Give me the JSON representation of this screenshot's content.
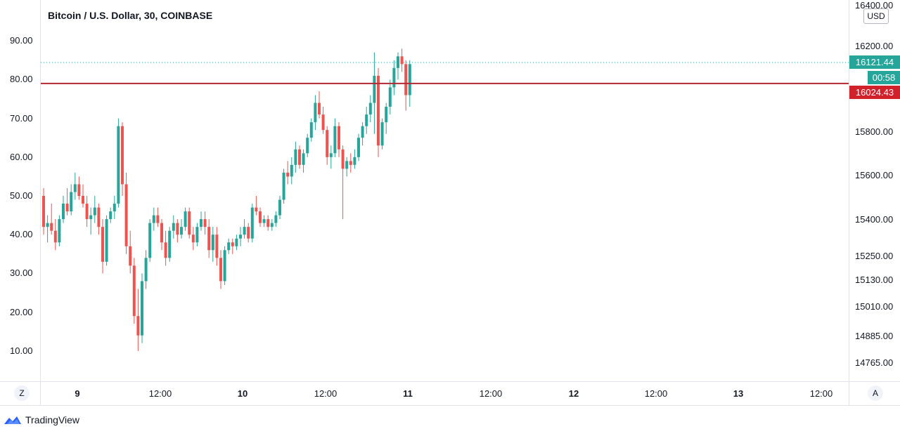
{
  "title": "Bitcoin / U.S. Dollar, 30, COINBASE",
  "currency_label": "USD",
  "brand": {
    "name": "TradingView",
    "icon": "tradingview-cloud-icon"
  },
  "left_axis_labels": [
    "90.00",
    "80.00",
    "70.00",
    "60.00",
    "50.00",
    "40.00",
    "30.00",
    "20.00",
    "10.00"
  ],
  "right_axis_labels": [
    "16400.00",
    "16200.00",
    "15800.00",
    "15600.00",
    "15400.00",
    "15250.00",
    "15130.00",
    "15010.00",
    "14885.00",
    "14765.00"
  ],
  "x_axis_labels": [
    "9",
    "12:00",
    "10",
    "12:00",
    "11",
    "12:00",
    "12",
    "12:00",
    "13",
    "12:00"
  ],
  "tags": {
    "last_price": "16121.44",
    "countdown": "00:58",
    "line_price": "16024.43"
  },
  "buttons": {
    "zoom": "Z",
    "auto_scale": "A"
  },
  "colors": {
    "up": "#26a69a",
    "down": "#ef5350",
    "level_line": "#b22833",
    "last_price_tag": "#26a69a",
    "level_tag": "#d1212b"
  },
  "chart_data": {
    "type": "candlestick",
    "title": "Bitcoin / U.S. Dollar, 30, COINBASE",
    "interval": "30",
    "exchange": "COINBASE",
    "scale": "percent-mapped",
    "left_ylim": [
      0,
      100
    ],
    "x_ticks": [
      "9",
      "12:00",
      "10",
      "12:00",
      "11",
      "12:00",
      "12",
      "12:00",
      "13",
      "12:00"
    ],
    "horizontal_line": 79,
    "last_price": 16121.44,
    "line_price": 16024.43,
    "candles": [
      {
        "o": 50,
        "h": 52,
        "l": 40,
        "c": 42
      },
      {
        "o": 42,
        "h": 45,
        "l": 38,
        "c": 43
      },
      {
        "o": 43,
        "h": 48,
        "l": 40,
        "c": 41
      },
      {
        "o": 41,
        "h": 44,
        "l": 36,
        "c": 38
      },
      {
        "o": 38,
        "h": 45,
        "l": 37,
        "c": 44
      },
      {
        "o": 44,
        "h": 50,
        "l": 43,
        "c": 48
      },
      {
        "o": 48,
        "h": 52,
        "l": 45,
        "c": 46
      },
      {
        "o": 46,
        "h": 53,
        "l": 45,
        "c": 51
      },
      {
        "o": 51,
        "h": 56,
        "l": 49,
        "c": 53
      },
      {
        "o": 53,
        "h": 55,
        "l": 49,
        "c": 50
      },
      {
        "o": 50,
        "h": 53,
        "l": 47,
        "c": 48
      },
      {
        "o": 48,
        "h": 50,
        "l": 42,
        "c": 44
      },
      {
        "o": 44,
        "h": 47,
        "l": 40,
        "c": 45
      },
      {
        "o": 45,
        "h": 50,
        "l": 43,
        "c": 47
      },
      {
        "o": 47,
        "h": 48,
        "l": 40,
        "c": 42
      },
      {
        "o": 42,
        "h": 44,
        "l": 30,
        "c": 33
      },
      {
        "o": 33,
        "h": 45,
        "l": 32,
        "c": 44
      },
      {
        "o": 44,
        "h": 47,
        "l": 43,
        "c": 46
      },
      {
        "o": 46,
        "h": 50,
        "l": 44,
        "c": 48
      },
      {
        "o": 48,
        "h": 70,
        "l": 47,
        "c": 68
      },
      {
        "o": 68,
        "h": 69,
        "l": 50,
        "c": 53
      },
      {
        "o": 53,
        "h": 56,
        "l": 35,
        "c": 37
      },
      {
        "o": 37,
        "h": 41,
        "l": 30,
        "c": 32
      },
      {
        "o": 32,
        "h": 34,
        "l": 17,
        "c": 19
      },
      {
        "o": 19,
        "h": 26,
        "l": 10,
        "c": 14
      },
      {
        "o": 14,
        "h": 30,
        "l": 12,
        "c": 28
      },
      {
        "o": 28,
        "h": 36,
        "l": 26,
        "c": 34
      },
      {
        "o": 34,
        "h": 44,
        "l": 33,
        "c": 43
      },
      {
        "o": 43,
        "h": 47,
        "l": 41,
        "c": 45
      },
      {
        "o": 45,
        "h": 47,
        "l": 42,
        "c": 43
      },
      {
        "o": 43,
        "h": 44,
        "l": 36,
        "c": 38
      },
      {
        "o": 38,
        "h": 41,
        "l": 32,
        "c": 34
      },
      {
        "o": 34,
        "h": 42,
        "l": 33,
        "c": 41
      },
      {
        "o": 41,
        "h": 45,
        "l": 39,
        "c": 43
      },
      {
        "o": 43,
        "h": 44,
        "l": 38,
        "c": 40
      },
      {
        "o": 40,
        "h": 44,
        "l": 39,
        "c": 42
      },
      {
        "o": 42,
        "h": 47,
        "l": 41,
        "c": 46
      },
      {
        "o": 46,
        "h": 47,
        "l": 39,
        "c": 40
      },
      {
        "o": 40,
        "h": 42,
        "l": 36,
        "c": 38
      },
      {
        "o": 38,
        "h": 43,
        "l": 37,
        "c": 42
      },
      {
        "o": 42,
        "h": 46,
        "l": 41,
        "c": 44
      },
      {
        "o": 44,
        "h": 46,
        "l": 40,
        "c": 42
      },
      {
        "o": 42,
        "h": 44,
        "l": 34,
        "c": 36
      },
      {
        "o": 36,
        "h": 42,
        "l": 33,
        "c": 40
      },
      {
        "o": 40,
        "h": 42,
        "l": 32,
        "c": 34
      },
      {
        "o": 34,
        "h": 36,
        "l": 26,
        "c": 28
      },
      {
        "o": 28,
        "h": 37,
        "l": 27,
        "c": 36
      },
      {
        "o": 36,
        "h": 39,
        "l": 35,
        "c": 38
      },
      {
        "o": 38,
        "h": 39,
        "l": 35,
        "c": 37
      },
      {
        "o": 37,
        "h": 40,
        "l": 36,
        "c": 39
      },
      {
        "o": 39,
        "h": 42,
        "l": 37,
        "c": 40
      },
      {
        "o": 40,
        "h": 44,
        "l": 39,
        "c": 42
      },
      {
        "o": 42,
        "h": 43,
        "l": 38,
        "c": 39
      },
      {
        "o": 39,
        "h": 48,
        "l": 38,
        "c": 47
      },
      {
        "o": 47,
        "h": 50,
        "l": 45,
        "c": 46
      },
      {
        "o": 46,
        "h": 47,
        "l": 42,
        "c": 43
      },
      {
        "o": 43,
        "h": 45,
        "l": 42,
        "c": 44
      },
      {
        "o": 44,
        "h": 45,
        "l": 41,
        "c": 42
      },
      {
        "o": 42,
        "h": 44,
        "l": 41,
        "c": 43
      },
      {
        "o": 43,
        "h": 46,
        "l": 42,
        "c": 45
      },
      {
        "o": 45,
        "h": 50,
        "l": 44,
        "c": 49
      },
      {
        "o": 49,
        "h": 57,
        "l": 48,
        "c": 56
      },
      {
        "o": 56,
        "h": 59,
        "l": 53,
        "c": 55
      },
      {
        "o": 55,
        "h": 60,
        "l": 53,
        "c": 58
      },
      {
        "o": 58,
        "h": 64,
        "l": 56,
        "c": 62
      },
      {
        "o": 62,
        "h": 63,
        "l": 57,
        "c": 58
      },
      {
        "o": 58,
        "h": 62,
        "l": 56,
        "c": 61
      },
      {
        "o": 61,
        "h": 66,
        "l": 60,
        "c": 65
      },
      {
        "o": 65,
        "h": 70,
        "l": 64,
        "c": 69
      },
      {
        "o": 69,
        "h": 76,
        "l": 67,
        "c": 74
      },
      {
        "o": 74,
        "h": 77,
        "l": 70,
        "c": 71
      },
      {
        "o": 71,
        "h": 73,
        "l": 66,
        "c": 67
      },
      {
        "o": 67,
        "h": 68,
        "l": 58,
        "c": 60
      },
      {
        "o": 60,
        "h": 63,
        "l": 57,
        "c": 61
      },
      {
        "o": 61,
        "h": 70,
        "l": 60,
        "c": 68
      },
      {
        "o": 68,
        "h": 69,
        "l": 60,
        "c": 62
      },
      {
        "o": 62,
        "h": 63,
        "l": 44,
        "c": 57
      },
      {
        "o": 57,
        "h": 60,
        "l": 55,
        "c": 59
      },
      {
        "o": 59,
        "h": 61,
        "l": 56,
        "c": 58
      },
      {
        "o": 58,
        "h": 62,
        "l": 57,
        "c": 60
      },
      {
        "o": 60,
        "h": 66,
        "l": 59,
        "c": 65
      },
      {
        "o": 65,
        "h": 69,
        "l": 63,
        "c": 68
      },
      {
        "o": 68,
        "h": 73,
        "l": 66,
        "c": 71
      },
      {
        "o": 71,
        "h": 76,
        "l": 69,
        "c": 74
      },
      {
        "o": 74,
        "h": 87,
        "l": 66,
        "c": 81
      },
      {
        "o": 81,
        "h": 83,
        "l": 60,
        "c": 63
      },
      {
        "o": 63,
        "h": 70,
        "l": 62,
        "c": 69
      },
      {
        "o": 69,
        "h": 74,
        "l": 66,
        "c": 73
      },
      {
        "o": 73,
        "h": 80,
        "l": 71,
        "c": 78
      },
      {
        "o": 78,
        "h": 85,
        "l": 76,
        "c": 83
      },
      {
        "o": 83,
        "h": 87,
        "l": 80,
        "c": 86
      },
      {
        "o": 86,
        "h": 88,
        "l": 82,
        "c": 84
      },
      {
        "o": 84,
        "h": 85,
        "l": 72,
        "c": 76
      },
      {
        "o": 76,
        "h": 85,
        "l": 73,
        "c": 84
      }
    ]
  }
}
